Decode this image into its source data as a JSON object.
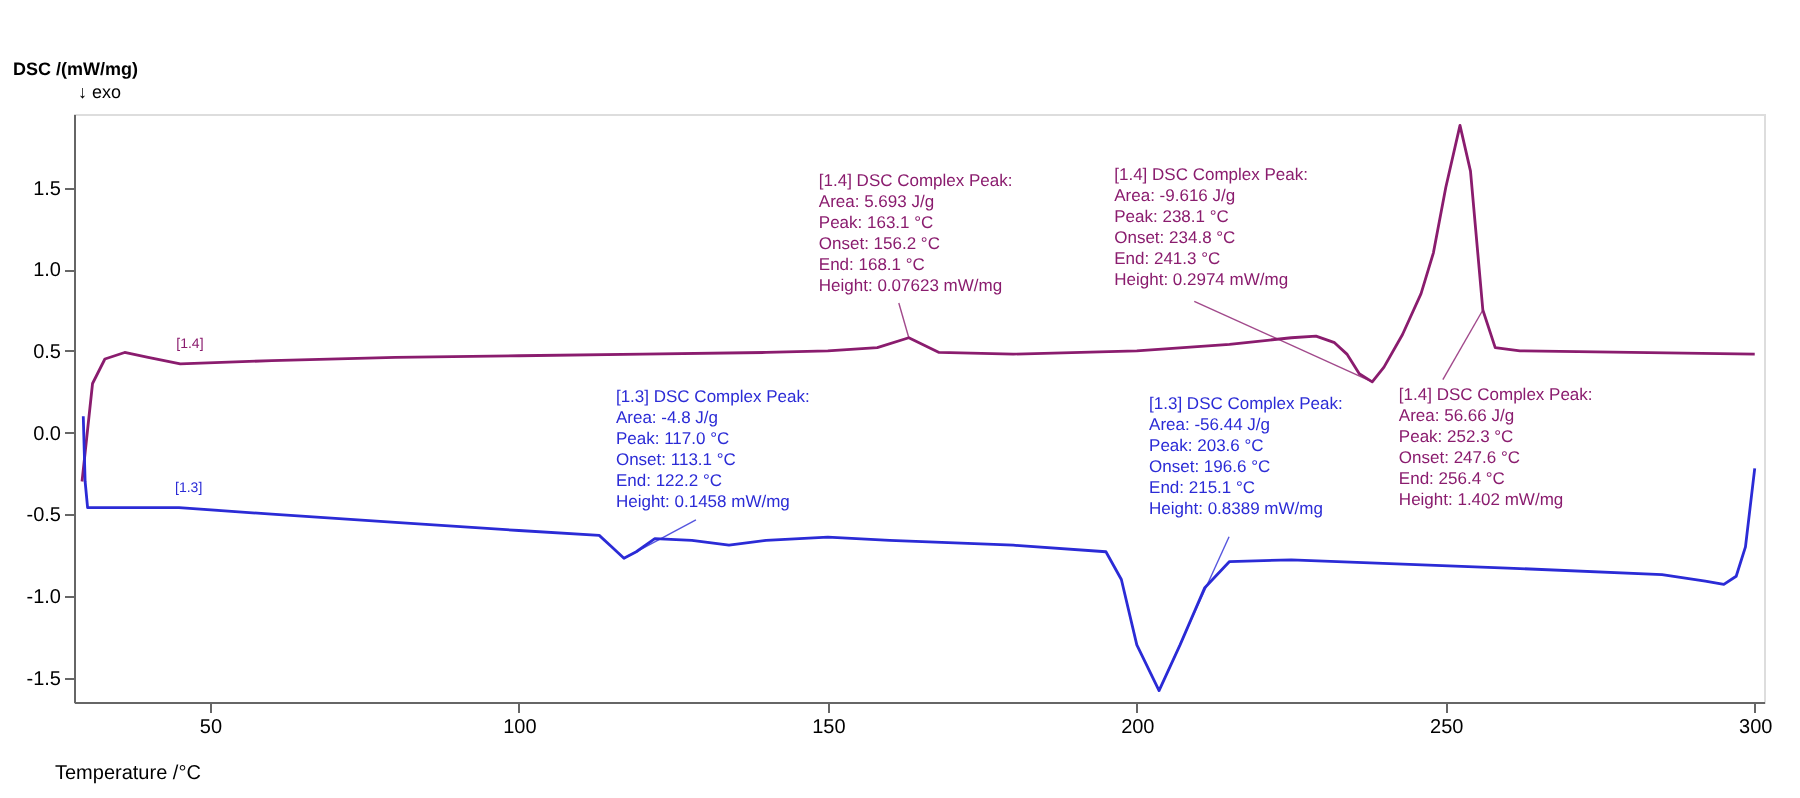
{
  "chart_data": {
    "type": "line",
    "xlabel": "Temperature /°C",
    "ylabel": "DSC /(mW/mg)",
    "xlim": [
      28,
      301.5
    ],
    "ylim": [
      -1.65,
      1.95
    ],
    "xticks": [
      50,
      100,
      150,
      200,
      250,
      300
    ],
    "yticks": [
      -1.5,
      {
        "value": -1,
        "label": "-1.0"
      },
      -0.5,
      {
        "value": 0,
        "label": "0.0"
      },
      0.5,
      {
        "value": 1,
        "label": "1.0"
      },
      1.5
    ],
    "grid": false,
    "legend": false,
    "line_style": "solid",
    "marker": "none",
    "series": [
      {
        "name": "[1.4]",
        "color": "#8a1c6e",
        "x": [
          29.3,
          31,
          33,
          36.2,
          40,
          45.2,
          60,
          80,
          100,
          120,
          140,
          150,
          158,
          163.1,
          168,
          180,
          200,
          215,
          225,
          229,
          232,
          234,
          236,
          238.1,
          240,
          243,
          246,
          248,
          250,
          252.3,
          254,
          256,
          258,
          262,
          280,
          300
        ],
        "values": [
          -0.3,
          0.3,
          0.45,
          0.49,
          0.46,
          0.42,
          0.44,
          0.46,
          0.47,
          0.48,
          0.49,
          0.5,
          0.52,
          0.58,
          0.49,
          0.48,
          0.5,
          0.54,
          0.58,
          0.59,
          0.55,
          0.48,
          0.36,
          0.31,
          0.4,
          0.6,
          0.85,
          1.1,
          1.5,
          1.88,
          1.6,
          0.75,
          0.52,
          0.5,
          0.49,
          0.48
        ]
      },
      {
        "name": "[1.3]",
        "color": "#2b2bd6",
        "x": [
          29.5,
          29.8,
          30.2,
          45,
          60,
          80,
          100,
          113,
          115,
          117,
          119,
          122,
          128,
          134,
          140,
          150,
          160,
          180,
          195,
          197.5,
          200,
          203.6,
          207,
          211,
          215,
          225,
          260,
          285,
          292,
          295,
          297,
          298.5,
          300
        ],
        "values": [
          0.1,
          -0.3,
          -0.46,
          -0.46,
          -0.5,
          -0.55,
          -0.6,
          -0.63,
          -0.7,
          -0.77,
          -0.73,
          -0.65,
          -0.66,
          -0.69,
          -0.66,
          -0.64,
          -0.66,
          -0.69,
          -0.73,
          -0.9,
          -1.3,
          -1.58,
          -1.3,
          -0.95,
          -0.79,
          -0.78,
          -0.83,
          -0.87,
          -0.91,
          -0.93,
          -0.88,
          -0.7,
          -0.22
        ]
      }
    ],
    "annotations": [
      "↓ exo",
      {
        "text": "[1.4] DSC Complex Peak:\nArea:      5.693 J/g\nPeak:    163.1 °C\nOnset:   156.2 °C\nEnd:      168.1 °C\nHeight:    0.07623 mW/mg",
        "x": 163.1,
        "y": 0.58
      },
      {
        "text": "[1.4] DSC Complex Peak:\nArea:      -9.616 J/g\nPeak:    238.1 °C\nOnset:   234.8 °C\nEnd:      241.3 °C\nHeight:    0.2974 mW/mg",
        "x": 238.1,
        "y": 0.31
      },
      {
        "text": "[1.4] DSC Complex Peak:\nArea:      56.66 J/g\nPeak:    252.3 °C\nOnset:   247.6 °C\nEnd:      256.4 °C\nHeight:    1.402 mW/mg",
        "x": 256,
        "y": 0.75
      },
      {
        "text": "[1.3] DSC Complex Peak:\nArea:      -4.8 J/g\nPeak:    117.0 °C\nOnset:   113.1 °C\nEnd:      122.2 °C\nHeight:    0.1458 mW/mg",
        "x": 117.0,
        "y": -0.77
      },
      {
        "text": "[1.3] DSC Complex Peak:\nArea:      -56.44 J/g\nPeak:    203.6 °C\nOnset:   196.6 °C\nEnd:      215.1 °C\nHeight:    0.8389 mW/mg",
        "x": 203.6,
        "y": -1.58
      }
    ]
  }
}
